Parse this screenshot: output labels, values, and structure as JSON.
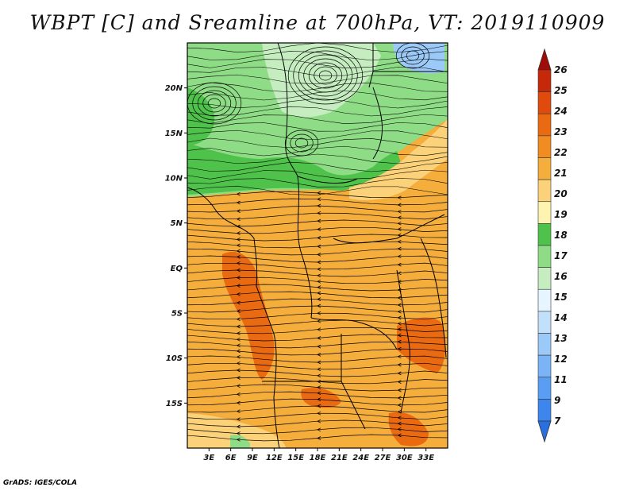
{
  "title": "WBPT [C] and Sreamline at 700hPa, VT: 2019110909",
  "credit": "GrADS: IGES/COLA",
  "map": {
    "lon_range": [
      0,
      36
    ],
    "lat_range": [
      -20,
      25
    ],
    "lon_ticks": [
      "3E",
      "6E",
      "9E",
      "12E",
      "15E",
      "18E",
      "21E",
      "24E",
      "27E",
      "30E",
      "33E"
    ],
    "lat_ticks": [
      "20N",
      "15N",
      "10N",
      "5N",
      "EQ",
      "5S",
      "10S",
      "15S"
    ]
  },
  "colorbar": {
    "levels": [
      "7",
      "9",
      "11",
      "12",
      "13",
      "14",
      "15",
      "16",
      "17",
      "18",
      "19",
      "20",
      "21",
      "22",
      "23",
      "24",
      "25",
      "26"
    ],
    "colors": [
      "#2a6fe0",
      "#3d86ee",
      "#5a9ef4",
      "#7ab4f6",
      "#9ccaf8",
      "#c3e0fb",
      "#e6f5ff",
      "#c5edc0",
      "#8fdc86",
      "#4ec24a",
      "#fff3b0",
      "#fbd27a",
      "#f5ad3c",
      "#f08c22",
      "#ea6a12",
      "#e04a0c",
      "#c8280a",
      "#a00c08"
    ]
  },
  "field_colors": {
    "north_green_light": "#8fdc86",
    "north_green_pale": "#c5edc0",
    "north_green_dark": "#4ec24a",
    "north_blue": "#9ccaf8",
    "tropical_orange": "#f5ad3c",
    "orange_deep": "#ea6a12",
    "yellow_band": "#fbd27a",
    "streamline": "#000000"
  }
}
